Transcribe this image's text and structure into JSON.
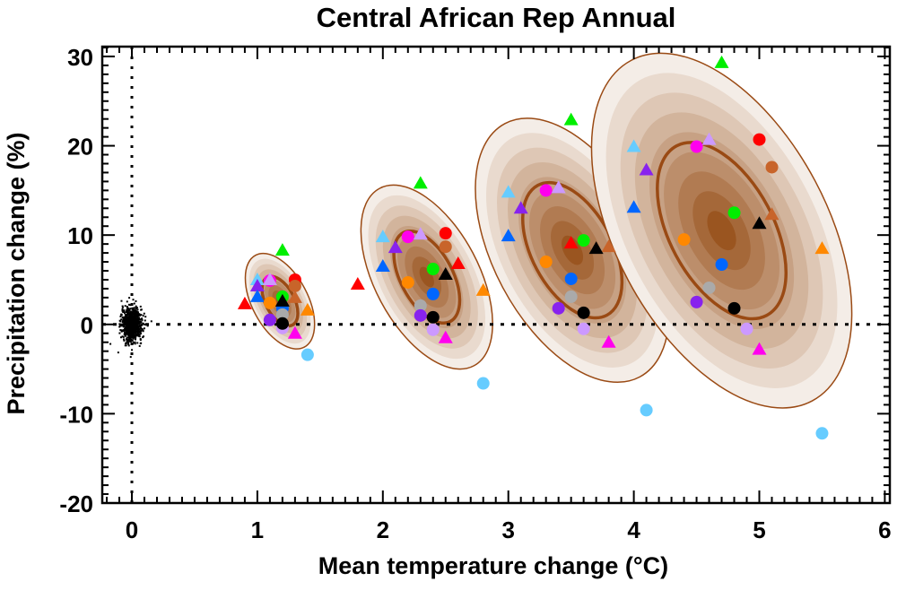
{
  "chart_data": {
    "type": "scatter",
    "title": "Central African Rep Annual",
    "xlabel": "Mean temperature change (°C)",
    "xlabel_parts": {
      "pre": "Mean temperature change (",
      "sup": "o",
      "post": "C)"
    },
    "ylabel": "Precipitation change (%)",
    "xlim": [
      -0.236,
      6.04
    ],
    "ylim": [
      -20.0,
      31.1
    ],
    "xticks": [
      0,
      1,
      2,
      3,
      4,
      5,
      6
    ],
    "xtick_labels": [
      "0",
      "1",
      "2",
      "3",
      "4",
      "5",
      "6"
    ],
    "yticks": [
      -20,
      -10,
      0,
      10,
      20,
      30
    ],
    "ytick_labels": [
      "-20",
      "-10",
      "0",
      "10",
      "20",
      "30"
    ],
    "reference_lines": {
      "x": 0,
      "y": 0,
      "style": "dotted"
    },
    "colors": {
      "red": "#ff0000",
      "sienna": "#c8642a",
      "green": "#00ee00",
      "black": "#000000",
      "blue": "#0066ff",
      "orange": "#ff8800",
      "magenta": "#ff00ee",
      "lavender": "#cc99ff",
      "purple": "#8822ee",
      "gray": "#aaaaaa",
      "lightblue": "#66ccff"
    },
    "control_noise": {
      "center": [
        0,
        0
      ],
      "x_sd": 0.04,
      "y_sd": 0.9,
      "n": 900,
      "color": "#000000"
    },
    "ellipses": [
      {
        "center": [
          1.18,
          2.6
        ],
        "outline": "#9a4a14",
        "fill_dark": "#9a5520",
        "fill_light": "#f4ede7"
      },
      {
        "center": [
          2.35,
          5.3
        ],
        "outline": "#9a4a14",
        "fill_dark": "#9a5520",
        "fill_light": "#f4ede7"
      },
      {
        "center": [
          3.51,
          8.3
        ],
        "outline": "#9a4a14",
        "fill_dark": "#9a5520",
        "fill_light": "#f4ede7"
      },
      {
        "center": [
          4.7,
          10.5
        ],
        "outline": "#9a4a14",
        "fill_dark": "#9a5520",
        "fill_light": "#f4ede7"
      }
    ],
    "points": [
      {
        "x": 0.9,
        "y": 2.3,
        "color": "red",
        "marker": "triangle"
      },
      {
        "x": 1.2,
        "y": 8.3,
        "color": "green",
        "marker": "triangle"
      },
      {
        "x": 1.0,
        "y": 5.0,
        "color": "lightblue",
        "marker": "triangle"
      },
      {
        "x": 1.1,
        "y": 4.9,
        "color": "magenta",
        "marker": "circle"
      },
      {
        "x": 1.1,
        "y": 5.0,
        "color": "lavender",
        "marker": "triangle"
      },
      {
        "x": 1.0,
        "y": 4.3,
        "color": "purple",
        "marker": "triangle"
      },
      {
        "x": 1.0,
        "y": 3.1,
        "color": "blue",
        "marker": "triangle"
      },
      {
        "x": 1.3,
        "y": 5.0,
        "color": "red",
        "marker": "circle"
      },
      {
        "x": 1.3,
        "y": 4.3,
        "color": "sienna",
        "marker": "circle"
      },
      {
        "x": 1.3,
        "y": 3.0,
        "color": "sienna",
        "marker": "triangle"
      },
      {
        "x": 1.2,
        "y": 3.1,
        "color": "green",
        "marker": "circle"
      },
      {
        "x": 1.2,
        "y": 1.8,
        "color": "blue",
        "marker": "circle"
      },
      {
        "x": 1.2,
        "y": 2.6,
        "color": "black",
        "marker": "triangle"
      },
      {
        "x": 1.1,
        "y": 2.4,
        "color": "orange",
        "marker": "circle"
      },
      {
        "x": 1.2,
        "y": 1.1,
        "color": "gray",
        "marker": "circle"
      },
      {
        "x": 1.4,
        "y": 1.6,
        "color": "orange",
        "marker": "triangle"
      },
      {
        "x": 1.1,
        "y": 0.5,
        "color": "purple",
        "marker": "circle"
      },
      {
        "x": 1.2,
        "y": -0.4,
        "color": "lavender",
        "marker": "circle"
      },
      {
        "x": 1.2,
        "y": 0.1,
        "color": "black",
        "marker": "circle"
      },
      {
        "x": 1.3,
        "y": -1.0,
        "color": "magenta",
        "marker": "triangle"
      },
      {
        "x": 1.4,
        "y": -3.4,
        "color": "lightblue",
        "marker": "circle"
      },
      {
        "x": 1.8,
        "y": 4.5,
        "color": "red",
        "marker": "triangle"
      },
      {
        "x": 2.3,
        "y": 15.8,
        "color": "green",
        "marker": "triangle"
      },
      {
        "x": 2.0,
        "y": 9.8,
        "color": "lightblue",
        "marker": "triangle"
      },
      {
        "x": 2.2,
        "y": 9.8,
        "color": "magenta",
        "marker": "circle"
      },
      {
        "x": 2.3,
        "y": 10.1,
        "color": "lavender",
        "marker": "triangle"
      },
      {
        "x": 2.5,
        "y": 10.2,
        "color": "red",
        "marker": "circle"
      },
      {
        "x": 2.5,
        "y": 8.7,
        "color": "sienna",
        "marker": "circle"
      },
      {
        "x": 2.1,
        "y": 8.6,
        "color": "purple",
        "marker": "triangle"
      },
      {
        "x": 2.0,
        "y": 6.5,
        "color": "blue",
        "marker": "triangle"
      },
      {
        "x": 2.6,
        "y": 6.8,
        "color": "red",
        "marker": "triangle"
      },
      {
        "x": 2.4,
        "y": 6.2,
        "color": "green",
        "marker": "circle"
      },
      {
        "x": 2.5,
        "y": 5.6,
        "color": "black",
        "marker": "triangle"
      },
      {
        "x": 2.2,
        "y": 4.7,
        "color": "orange",
        "marker": "circle"
      },
      {
        "x": 2.4,
        "y": 3.4,
        "color": "blue",
        "marker": "circle"
      },
      {
        "x": 2.3,
        "y": 2.1,
        "color": "gray",
        "marker": "circle"
      },
      {
        "x": 2.3,
        "y": 1.0,
        "color": "purple",
        "marker": "circle"
      },
      {
        "x": 2.4,
        "y": 0.8,
        "color": "black",
        "marker": "circle"
      },
      {
        "x": 2.4,
        "y": -0.6,
        "color": "lavender",
        "marker": "circle"
      },
      {
        "x": 2.5,
        "y": -1.5,
        "color": "magenta",
        "marker": "triangle"
      },
      {
        "x": 2.8,
        "y": 3.8,
        "color": "orange",
        "marker": "triangle"
      },
      {
        "x": 2.8,
        "y": -6.6,
        "color": "lightblue",
        "marker": "circle"
      },
      {
        "x": 3.5,
        "y": 22.9,
        "color": "green",
        "marker": "triangle"
      },
      {
        "x": 3.0,
        "y": 14.8,
        "color": "lightblue",
        "marker": "triangle"
      },
      {
        "x": 3.3,
        "y": 15.0,
        "color": "magenta",
        "marker": "circle"
      },
      {
        "x": 3.4,
        "y": 15.3,
        "color": "lavender",
        "marker": "triangle"
      },
      {
        "x": 3.1,
        "y": 13.0,
        "color": "purple",
        "marker": "triangle"
      },
      {
        "x": 3.0,
        "y": 9.9,
        "color": "blue",
        "marker": "triangle"
      },
      {
        "x": 3.8,
        "y": 8.7,
        "color": "sienna",
        "marker": "triangle"
      },
      {
        "x": 3.5,
        "y": 9.1,
        "color": "red",
        "marker": "triangle"
      },
      {
        "x": 3.6,
        "y": 9.4,
        "color": "green",
        "marker": "circle"
      },
      {
        "x": 3.7,
        "y": 8.5,
        "color": "black",
        "marker": "triangle"
      },
      {
        "x": 3.3,
        "y": 7.0,
        "color": "orange",
        "marker": "circle"
      },
      {
        "x": 3.5,
        "y": 5.1,
        "color": "blue",
        "marker": "circle"
      },
      {
        "x": 3.5,
        "y": 3.1,
        "color": "gray",
        "marker": "circle"
      },
      {
        "x": 3.4,
        "y": 1.8,
        "color": "purple",
        "marker": "circle"
      },
      {
        "x": 3.6,
        "y": 1.3,
        "color": "black",
        "marker": "circle"
      },
      {
        "x": 3.6,
        "y": -0.5,
        "color": "lavender",
        "marker": "circle"
      },
      {
        "x": 3.8,
        "y": -2.0,
        "color": "magenta",
        "marker": "triangle"
      },
      {
        "x": 4.1,
        "y": -9.6,
        "color": "lightblue",
        "marker": "circle"
      },
      {
        "x": 4.7,
        "y": 29.3,
        "color": "green",
        "marker": "triangle"
      },
      {
        "x": 4.0,
        "y": 19.9,
        "color": "lightblue",
        "marker": "triangle"
      },
      {
        "x": 4.5,
        "y": 19.9,
        "color": "magenta",
        "marker": "circle"
      },
      {
        "x": 4.6,
        "y": 20.7,
        "color": "lavender",
        "marker": "triangle"
      },
      {
        "x": 5.0,
        "y": 20.7,
        "color": "red",
        "marker": "circle"
      },
      {
        "x": 5.1,
        "y": 17.6,
        "color": "sienna",
        "marker": "circle"
      },
      {
        "x": 4.1,
        "y": 17.3,
        "color": "purple",
        "marker": "triangle"
      },
      {
        "x": 4.0,
        "y": 13.1,
        "color": "blue",
        "marker": "triangle"
      },
      {
        "x": 4.8,
        "y": 12.5,
        "color": "green",
        "marker": "circle"
      },
      {
        "x": 5.1,
        "y": 12.3,
        "color": "sienna",
        "marker": "triangle"
      },
      {
        "x": 5.0,
        "y": 11.3,
        "color": "black",
        "marker": "triangle"
      },
      {
        "x": 4.4,
        "y": 9.5,
        "color": "orange",
        "marker": "circle"
      },
      {
        "x": 5.5,
        "y": 8.5,
        "color": "orange",
        "marker": "triangle"
      },
      {
        "x": 4.7,
        "y": 6.7,
        "color": "blue",
        "marker": "circle"
      },
      {
        "x": 4.6,
        "y": 4.1,
        "color": "gray",
        "marker": "circle"
      },
      {
        "x": 4.5,
        "y": 2.5,
        "color": "purple",
        "marker": "circle"
      },
      {
        "x": 4.8,
        "y": 1.8,
        "color": "black",
        "marker": "circle"
      },
      {
        "x": 4.9,
        "y": -0.5,
        "color": "lavender",
        "marker": "circle"
      },
      {
        "x": 5.0,
        "y": -2.8,
        "color": "magenta",
        "marker": "triangle"
      },
      {
        "x": 5.5,
        "y": -12.2,
        "color": "lightblue",
        "marker": "circle"
      }
    ]
  }
}
